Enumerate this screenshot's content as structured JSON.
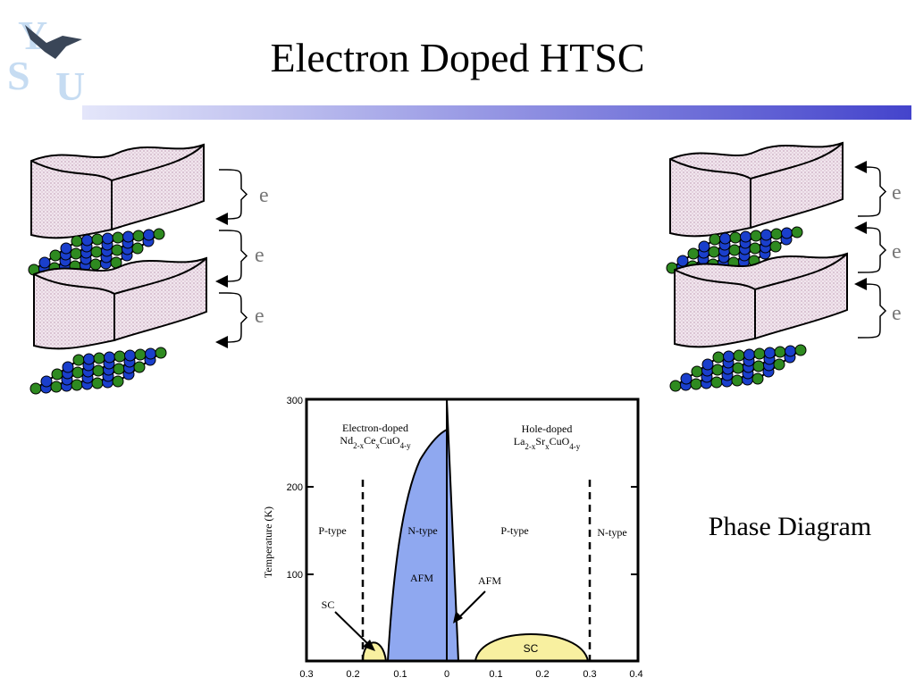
{
  "logo": {
    "letters": [
      "Y",
      "S",
      "U"
    ]
  },
  "header": {
    "title": "Electron Doped HTSC"
  },
  "left_diagram": {
    "labels": [
      "e",
      "e",
      "e"
    ]
  },
  "right_diagram": {
    "labels": [
      "e",
      "e",
      "e"
    ]
  },
  "phase_diagram": {
    "y_axis_label": "Temperature (K)",
    "y_ticks": [
      "300",
      "200",
      "100"
    ],
    "x_ticks": [
      "0.3",
      "0.2",
      "0.1",
      "0",
      "0.1",
      "0.2",
      "0.3",
      "0.4"
    ],
    "electron_side": {
      "heading": "Electron-doped",
      "formula": [
        "Nd",
        "2-x",
        "Ce",
        "x",
        "CuO",
        "4-y"
      ]
    },
    "hole_side": {
      "heading": "Hole-doped",
      "formula": [
        "La",
        "2-x",
        "Sr",
        "x",
        "CuO",
        "4-y"
      ]
    },
    "regions": {
      "p_type_left": "P-type",
      "n_type_left": "N-type",
      "afm_left": "AFM",
      "sc_left": "SC",
      "p_type_right": "P-type",
      "n_type_right": "N-type",
      "afm_right": "AFM",
      "sc_right": "SC"
    },
    "caption": "Phase Diagram"
  }
}
